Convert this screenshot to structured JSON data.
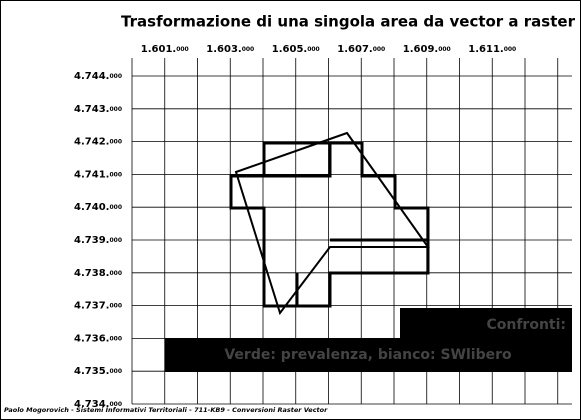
{
  "title": "Trasformazione di una singola area da vector a raster",
  "x_labels": [
    {
      "main": "1.601.",
      "small": "000"
    },
    {
      "main": "1.603.",
      "small": "000"
    },
    {
      "main": "1.605.",
      "small": "000"
    },
    {
      "main": "1.607.",
      "small": "000"
    },
    {
      "main": "1.609.",
      "small": "000"
    },
    {
      "main": "1.611.",
      "small": "000"
    }
  ],
  "y_labels": [
    {
      "main": "4.744.",
      "small": "000"
    },
    {
      "main": "4.743.",
      "small": "000"
    },
    {
      "main": "4.742.",
      "small": "000"
    },
    {
      "main": "4.741.",
      "small": "000"
    },
    {
      "main": "4.740.",
      "small": "000"
    },
    {
      "main": "4.739.",
      "small": "000"
    },
    {
      "main": "4.738.",
      "small": "000"
    },
    {
      "main": "4.737.",
      "small": "000"
    },
    {
      "main": "4.736.",
      "small": "000"
    },
    {
      "main": "4.735.",
      "small": "000"
    },
    {
      "main": "4.734.",
      "small": "000"
    }
  ],
  "overlay": {
    "line1": "Confronti:",
    "line2": "Verde: prevalenza, bianco: SWlibero"
  },
  "footer": "Paolo Mogorovich  -  Sistemi Informativi Territoriali  -  711-KB9  -  Conversioni Raster Vector"
}
